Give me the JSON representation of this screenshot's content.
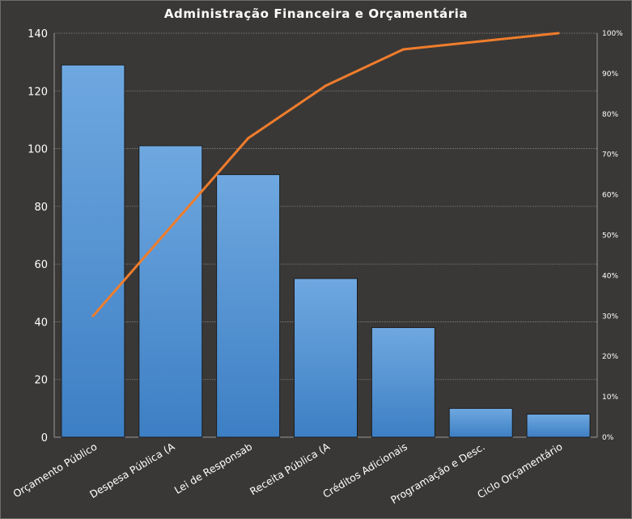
{
  "chart_data": {
    "type": "bar",
    "title": "Administração  Financeira  e Orçamentária",
    "categories": [
      "Orçamento Público",
      "Despesa Pública (A",
      "Lei de Responsab",
      "Receita Pública (A",
      "Créditos Adicionais",
      "Programação e Desc.",
      "Ciclo Orçamentário"
    ],
    "series": [
      {
        "type": "bar",
        "axis": "left",
        "values": [
          129,
          101,
          91,
          55,
          38,
          10,
          8
        ]
      },
      {
        "type": "line",
        "axis": "right",
        "values": [
          0.3,
          0.52,
          0.74,
          0.87,
          0.96,
          0.98,
          1.0
        ]
      }
    ],
    "y_left": {
      "ylim": [
        0,
        140
      ],
      "ticks": [
        0,
        20,
        40,
        60,
        80,
        100,
        120,
        140
      ]
    },
    "y_right": {
      "ylim": [
        0,
        1
      ],
      "ticks": [
        "0%",
        "10%",
        "20%",
        "30%",
        "40%",
        "50%",
        "60%",
        "70%",
        "80%",
        "90%",
        "100%"
      ]
    },
    "grid": true,
    "colors": {
      "background": "#3a3836",
      "bar_top": "#6fa8e0",
      "bar_bottom": "#3d7fc4",
      "line": "#f07d2c",
      "grid": "#8a8886",
      "text": "#ffffff"
    }
  }
}
